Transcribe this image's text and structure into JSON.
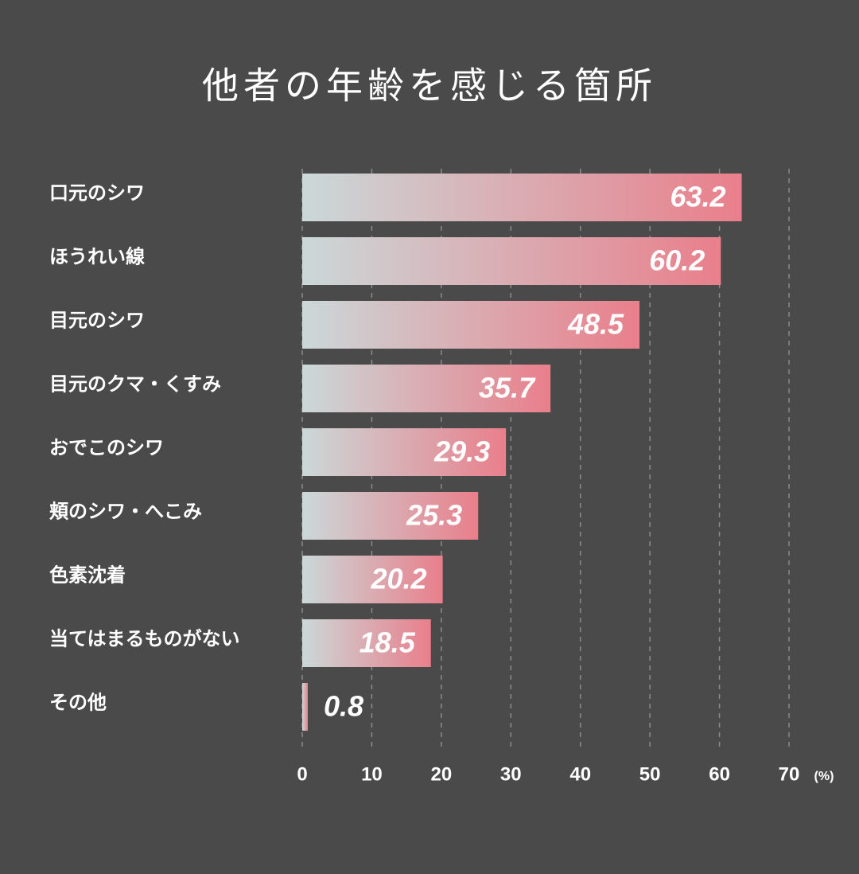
{
  "chart_data": {
    "type": "bar",
    "orientation": "horizontal",
    "title": "他者の年齢を感じる箇所",
    "categories": [
      "口元のシワ",
      "ほうれい線",
      "目元のシワ",
      "目元のクマ・くすみ",
      "おでこのシワ",
      "頬のシワ・へこみ",
      "色素沈着",
      "当てはまるものがない",
      "その他"
    ],
    "values": [
      63.2,
      60.2,
      48.5,
      35.7,
      29.3,
      25.3,
      20.2,
      18.5,
      0.8
    ],
    "value_labels": [
      "63.2",
      "60.2",
      "48.5",
      "35.7",
      "29.3",
      "25.3",
      "20.2",
      "18.5",
      "0.8"
    ],
    "color": [
      "#cbd8d8",
      "#e97f8b"
    ],
    "xlim": [
      0,
      70
    ],
    "xticks": [
      0,
      10,
      20,
      30,
      40,
      50,
      60,
      70
    ],
    "x_unit": "(%)",
    "grid": true
  }
}
